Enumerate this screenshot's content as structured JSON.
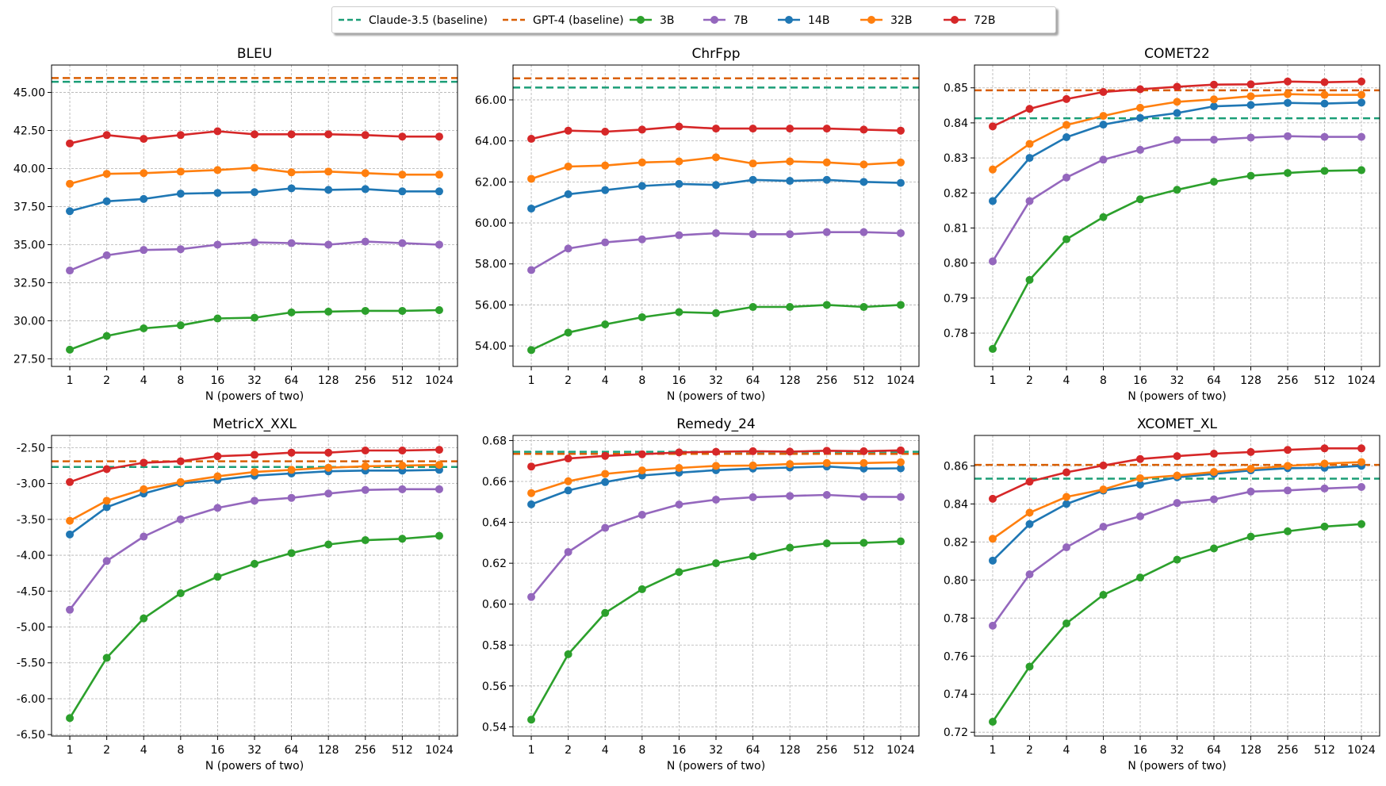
{
  "legend": [
    {
      "label": "Claude-3.5 (baseline)",
      "kind": "baseline",
      "color": "#1b9e77"
    },
    {
      "label": "GPT-4 (baseline)",
      "kind": "baseline",
      "color": "#d95f02"
    },
    {
      "label": "3B",
      "kind": "series",
      "color": "#2ca02c"
    },
    {
      "label": "7B",
      "kind": "series",
      "color": "#9467bd"
    },
    {
      "label": "14B",
      "kind": "series",
      "color": "#1f77b4"
    },
    {
      "label": "32B",
      "kind": "series",
      "color": "#ff7f0e"
    },
    {
      "label": "72B",
      "kind": "series",
      "color": "#d62728"
    }
  ],
  "chart_data": [
    {
      "type": "line",
      "title": "BLEU",
      "xlabel": "N (powers of two)",
      "ylabel": "",
      "categories": [
        "1",
        "2",
        "4",
        "8",
        "16",
        "32",
        "64",
        "128",
        "256",
        "512",
        "1024"
      ],
      "ylim": [
        27.0,
        46.8
      ],
      "yticks": [
        "27.50",
        "30.00",
        "32.50",
        "35.00",
        "37.50",
        "40.00",
        "42.50",
        "45.00"
      ],
      "baselines": [
        {
          "name": "Claude-3.5 (baseline)",
          "value": 45.7
        },
        {
          "name": "GPT-4 (baseline)",
          "value": 45.95
        }
      ],
      "series": [
        {
          "name": "3B",
          "values": [
            28.1,
            29.0,
            29.5,
            29.7,
            30.15,
            30.2,
            30.55,
            30.6,
            30.65,
            30.65,
            30.7
          ]
        },
        {
          "name": "7B",
          "values": [
            33.3,
            34.3,
            34.65,
            34.7,
            35.0,
            35.15,
            35.1,
            35.0,
            35.2,
            35.1,
            35.0
          ]
        },
        {
          "name": "14B",
          "values": [
            37.2,
            37.85,
            38.0,
            38.35,
            38.4,
            38.45,
            38.7,
            38.6,
            38.65,
            38.5,
            38.5
          ]
        },
        {
          "name": "32B",
          "values": [
            39.0,
            39.65,
            39.7,
            39.8,
            39.9,
            40.05,
            39.75,
            39.8,
            39.7,
            39.6,
            39.6
          ]
        },
        {
          "name": "72B",
          "values": [
            41.65,
            42.2,
            41.95,
            42.2,
            42.45,
            42.25,
            42.25,
            42.25,
            42.2,
            42.1,
            42.1
          ]
        }
      ]
    },
    {
      "type": "line",
      "title": "ChrFpp",
      "xlabel": "N (powers of two)",
      "ylabel": "",
      "categories": [
        "1",
        "2",
        "4",
        "8",
        "16",
        "32",
        "64",
        "128",
        "256",
        "512",
        "1024"
      ],
      "ylim": [
        53.0,
        67.7
      ],
      "yticks": [
        "54.00",
        "56.00",
        "58.00",
        "60.00",
        "62.00",
        "64.00",
        "66.00"
      ],
      "baselines": [
        {
          "name": "Claude-3.5 (baseline)",
          "value": 66.6
        },
        {
          "name": "GPT-4 (baseline)",
          "value": 67.05
        }
      ],
      "series": [
        {
          "name": "3B",
          "values": [
            53.8,
            54.65,
            55.05,
            55.4,
            55.65,
            55.6,
            55.9,
            55.9,
            56.0,
            55.9,
            56.0
          ]
        },
        {
          "name": "7B",
          "values": [
            57.7,
            58.75,
            59.05,
            59.2,
            59.4,
            59.5,
            59.45,
            59.45,
            59.55,
            59.55,
            59.5
          ]
        },
        {
          "name": "14B",
          "values": [
            60.7,
            61.4,
            61.6,
            61.8,
            61.9,
            61.85,
            62.1,
            62.05,
            62.1,
            62.0,
            61.95
          ]
        },
        {
          "name": "32B",
          "values": [
            62.15,
            62.75,
            62.8,
            62.95,
            63.0,
            63.2,
            62.9,
            63.0,
            62.95,
            62.85,
            62.95
          ]
        },
        {
          "name": "72B",
          "values": [
            64.1,
            64.5,
            64.45,
            64.55,
            64.7,
            64.6,
            64.6,
            64.6,
            64.6,
            64.55,
            64.5
          ]
        }
      ]
    },
    {
      "type": "line",
      "title": "COMET22",
      "xlabel": "N (powers of two)",
      "ylabel": "",
      "categories": [
        "1",
        "2",
        "4",
        "8",
        "16",
        "32",
        "64",
        "128",
        "256",
        "512",
        "1024"
      ],
      "ylim": [
        0.7705,
        0.8565
      ],
      "yticks": [
        "0.78",
        "0.79",
        "0.80",
        "0.81",
        "0.82",
        "0.83",
        "0.84",
        "0.85"
      ],
      "baselines": [
        {
          "name": "Claude-3.5 (baseline)",
          "value": 0.8413
        },
        {
          "name": "GPT-4 (baseline)",
          "value": 0.8493
        }
      ],
      "series": [
        {
          "name": "3B",
          "values": [
            0.7755,
            0.7952,
            0.8068,
            0.8131,
            0.8182,
            0.8209,
            0.8232,
            0.8249,
            0.8257,
            0.8263,
            0.8265
          ]
        },
        {
          "name": "7B",
          "values": [
            0.8005,
            0.8177,
            0.8244,
            0.8295,
            0.8323,
            0.8351,
            0.8352,
            0.8358,
            0.8362,
            0.836,
            0.836
          ]
        },
        {
          "name": "14B",
          "values": [
            0.8177,
            0.83,
            0.8359,
            0.8395,
            0.8414,
            0.8428,
            0.8447,
            0.8451,
            0.8457,
            0.8455,
            0.8458
          ]
        },
        {
          "name": "32B",
          "values": [
            0.8267,
            0.834,
            0.8394,
            0.842,
            0.8443,
            0.846,
            0.8467,
            0.8476,
            0.8482,
            0.848,
            0.848
          ]
        },
        {
          "name": "72B",
          "values": [
            0.839,
            0.844,
            0.8468,
            0.8488,
            0.8496,
            0.8503,
            0.8509,
            0.851,
            0.8518,
            0.8516,
            0.8518
          ]
        }
      ]
    },
    {
      "type": "line",
      "title": "MetricX_XXL",
      "xlabel": "N (powers of two)",
      "ylabel": "",
      "categories": [
        "1",
        "2",
        "4",
        "8",
        "16",
        "32",
        "64",
        "128",
        "256",
        "512",
        "1024"
      ],
      "ylim": [
        -6.52,
        -2.33
      ],
      "yticks": [
        "-6.50",
        "-6.00",
        "-5.50",
        "-5.00",
        "-4.50",
        "-4.00",
        "-3.50",
        "-3.00",
        "-2.50"
      ],
      "baselines": [
        {
          "name": "Claude-3.5 (baseline)",
          "value": -2.77
        },
        {
          "name": "GPT-4 (baseline)",
          "value": -2.69
        }
      ],
      "series": [
        {
          "name": "3B",
          "values": [
            -6.27,
            -5.43,
            -4.88,
            -4.53,
            -4.3,
            -4.12,
            -3.97,
            -3.85,
            -3.79,
            -3.77,
            -3.73
          ]
        },
        {
          "name": "7B",
          "values": [
            -4.76,
            -4.08,
            -3.74,
            -3.5,
            -3.34,
            -3.24,
            -3.2,
            -3.14,
            -3.09,
            -3.08,
            -3.08
          ]
        },
        {
          "name": "14B",
          "values": [
            -3.71,
            -3.33,
            -3.14,
            -3.0,
            -2.95,
            -2.89,
            -2.86,
            -2.83,
            -2.82,
            -2.82,
            -2.81
          ]
        },
        {
          "name": "32B",
          "values": [
            -3.52,
            -3.24,
            -3.08,
            -2.98,
            -2.9,
            -2.84,
            -2.81,
            -2.78,
            -2.76,
            -2.75,
            -2.74
          ]
        },
        {
          "name": "72B",
          "values": [
            -2.98,
            -2.8,
            -2.71,
            -2.69,
            -2.62,
            -2.6,
            -2.57,
            -2.57,
            -2.54,
            -2.54,
            -2.53
          ]
        }
      ]
    },
    {
      "type": "line",
      "title": "Remedy_24",
      "xlabel": "N (powers of two)",
      "ylabel": "",
      "categories": [
        "1",
        "2",
        "4",
        "8",
        "16",
        "32",
        "64",
        "128",
        "256",
        "512",
        "1024"
      ],
      "ylim": [
        0.5355,
        0.6825
      ],
      "yticks": [
        "0.54",
        "0.56",
        "0.58",
        "0.60",
        "0.62",
        "0.64",
        "0.66",
        "0.68"
      ],
      "baselines": [
        {
          "name": "Claude-3.5 (baseline)",
          "value": 0.6745
        },
        {
          "name": "GPT-4 (baseline)",
          "value": 0.6735
        }
      ],
      "series": [
        {
          "name": "3B",
          "values": [
            0.5435,
            0.5755,
            0.5957,
            0.6073,
            0.6157,
            0.62,
            0.6234,
            0.6276,
            0.6297,
            0.63,
            0.6307
          ]
        },
        {
          "name": "7B",
          "values": [
            0.6035,
            0.6255,
            0.6373,
            0.6437,
            0.6487,
            0.6511,
            0.6523,
            0.6529,
            0.6534,
            0.6525,
            0.6524
          ]
        },
        {
          "name": "14B",
          "values": [
            0.6488,
            0.6556,
            0.6597,
            0.6629,
            0.6643,
            0.6655,
            0.6663,
            0.6668,
            0.6673,
            0.6663,
            0.6664
          ]
        },
        {
          "name": "32B",
          "values": [
            0.6543,
            0.6601,
            0.6637,
            0.6654,
            0.6666,
            0.6676,
            0.6678,
            0.6685,
            0.669,
            0.669,
            0.6694
          ]
        },
        {
          "name": "72B",
          "values": [
            0.6673,
            0.6712,
            0.6725,
            0.6733,
            0.6742,
            0.6745,
            0.6748,
            0.6746,
            0.675,
            0.6748,
            0.6752
          ]
        }
      ]
    },
    {
      "type": "line",
      "title": "XCOMET_XL",
      "xlabel": "N (powers of two)",
      "ylabel": "",
      "categories": [
        "1",
        "2",
        "4",
        "8",
        "16",
        "32",
        "64",
        "128",
        "256",
        "512",
        "1024"
      ],
      "ylim": [
        0.718,
        0.876
      ],
      "yticks": [
        "0.72",
        "0.74",
        "0.76",
        "0.78",
        "0.80",
        "0.82",
        "0.84",
        "0.86"
      ],
      "baselines": [
        {
          "name": "Claude-3.5 (baseline)",
          "value": 0.8533
        },
        {
          "name": "GPT-4 (baseline)",
          "value": 0.8605
        }
      ],
      "series": [
        {
          "name": "3B",
          "values": [
            0.7255,
            0.7545,
            0.7772,
            0.7922,
            0.8013,
            0.8107,
            0.8166,
            0.8228,
            0.8256,
            0.8281,
            0.8294
          ]
        },
        {
          "name": "7B",
          "values": [
            0.776,
            0.803,
            0.8172,
            0.828,
            0.8335,
            0.8405,
            0.8424,
            0.8465,
            0.8471,
            0.8481,
            0.8489
          ]
        },
        {
          "name": "14B",
          "values": [
            0.8102,
            0.8294,
            0.84,
            0.847,
            0.8502,
            0.854,
            0.8558,
            0.8576,
            0.8588,
            0.859,
            0.86
          ]
        },
        {
          "name": "32B",
          "values": [
            0.8217,
            0.8354,
            0.8437,
            0.8476,
            0.8535,
            0.8549,
            0.8568,
            0.8585,
            0.86,
            0.8612,
            0.862
          ]
        },
        {
          "name": "72B",
          "values": [
            0.8427,
            0.8517,
            0.8566,
            0.8602,
            0.8636,
            0.8651,
            0.8664,
            0.8673,
            0.8684,
            0.8692,
            0.8692
          ]
        }
      ]
    }
  ]
}
